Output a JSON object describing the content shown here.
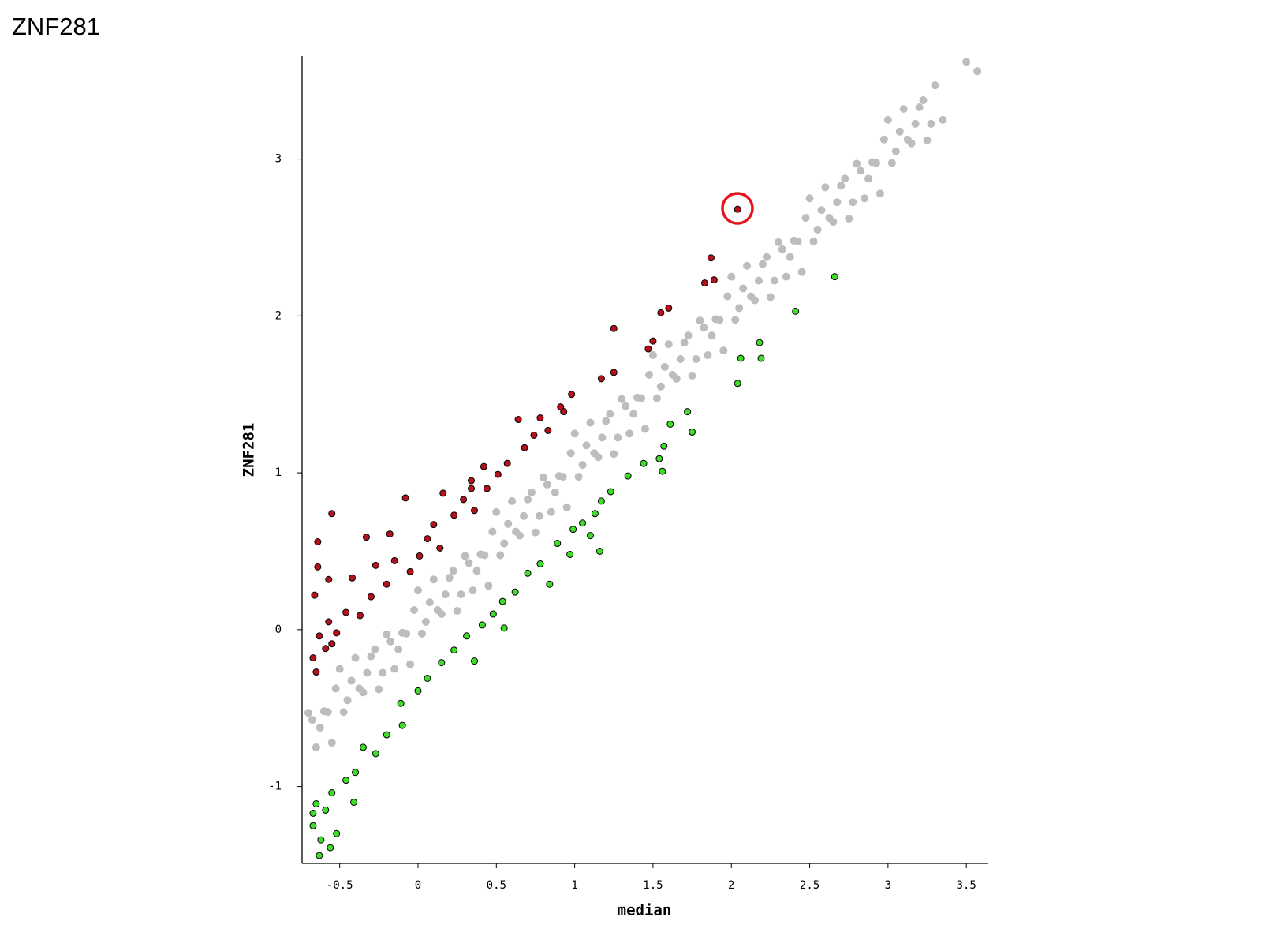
{
  "chart_data": {
    "type": "scatter",
    "title": "ZNF281",
    "x_label": "median",
    "y_label": "ZNF281",
    "xlim": [
      -0.74,
      3.635
    ],
    "ylim": [
      -1.49,
      3.657
    ],
    "xticks": [
      -0.5,
      0,
      0.5,
      1,
      1.5,
      2,
      2.5,
      3,
      3.5
    ],
    "yticks": [
      -1,
      0,
      1,
      2,
      3
    ],
    "grid": false,
    "series": [
      {
        "color": "#bdbdbd",
        "x": [
          -0.7,
          -0.65,
          -0.6,
          -0.55,
          -0.5,
          -0.45,
          -0.4,
          -0.35,
          -0.3,
          -0.25,
          -0.2,
          -0.15,
          -0.1,
          -0.05,
          0.0,
          0.05,
          0.1,
          0.15,
          0.2,
          0.25,
          0.3,
          0.35,
          0.4,
          0.45,
          0.5,
          0.55,
          0.6,
          0.65,
          0.7,
          0.75,
          0.8,
          0.85,
          0.9,
          0.95,
          1.0,
          1.05,
          1.1,
          1.15,
          1.2,
          1.25,
          1.3,
          1.35,
          1.4,
          1.45,
          1.5,
          1.55,
          1.6,
          1.65,
          1.7,
          1.75,
          1.8,
          1.85,
          1.9,
          1.95,
          2.0,
          2.05,
          2.1,
          2.15,
          2.2,
          2.25,
          2.3,
          2.35,
          2.4,
          2.45,
          2.5,
          2.55,
          2.6,
          2.65,
          2.7,
          2.75,
          2.8,
          2.85,
          2.9,
          2.95,
          3.0,
          3.05,
          3.1,
          3.15,
          3.2,
          3.25,
          3.3,
          3.35,
          3.5,
          3.57,
          -0.675,
          -0.625,
          -0.575,
          -0.525,
          -0.475,
          -0.425,
          -0.375,
          -0.325,
          -0.275,
          -0.225,
          -0.175,
          -0.125,
          -0.075,
          -0.025,
          0.025,
          0.075,
          0.125,
          0.175,
          0.225,
          0.275,
          0.325,
          0.375,
          0.425,
          0.475,
          0.525,
          0.575,
          0.625,
          0.675,
          0.725,
          0.775,
          0.825,
          0.875,
          0.925,
          0.975,
          1.025,
          1.075,
          1.125,
          1.175,
          1.225,
          1.275,
          1.325,
          1.375,
          1.425,
          1.475,
          1.525,
          1.575,
          1.625,
          1.675,
          1.725,
          1.775,
          1.825,
          1.875,
          1.925,
          1.975,
          2.025,
          2.075,
          2.125,
          2.175,
          2.225,
          2.275,
          2.325,
          2.375,
          2.425,
          2.475,
          2.525,
          2.575,
          2.625,
          2.675,
          2.725,
          2.775,
          2.825,
          2.875,
          2.925,
          2.975,
          3.025,
          3.075,
          3.125,
          3.175,
          3.225,
          3.275
        ],
        "values": [
          -0.53,
          -0.75,
          -0.52,
          -0.72,
          -0.25,
          -0.45,
          -0.18,
          -0.4,
          -0.17,
          -0.38,
          -0.03,
          -0.25,
          -0.02,
          -0.22,
          0.25,
          0.05,
          0.32,
          0.1,
          0.33,
          0.12,
          0.47,
          0.25,
          0.48,
          0.28,
          0.75,
          0.55,
          0.82,
          0.6,
          0.83,
          0.62,
          0.97,
          0.75,
          0.98,
          0.78,
          1.25,
          1.05,
          1.32,
          1.1,
          1.33,
          1.12,
          1.47,
          1.25,
          1.48,
          1.28,
          1.75,
          1.55,
          1.82,
          1.6,
          1.83,
          1.62,
          1.97,
          1.75,
          1.98,
          1.78,
          2.25,
          2.05,
          2.32,
          2.1,
          2.33,
          2.12,
          2.47,
          2.25,
          2.48,
          2.28,
          2.75,
          2.55,
          2.82,
          2.6,
          2.83,
          2.62,
          2.97,
          2.75,
          2.98,
          2.78,
          3.25,
          3.05,
          3.32,
          3.1,
          3.33,
          3.12,
          3.47,
          3.25,
          3.62,
          3.56,
          -0.575,
          -0.625,
          -0.525,
          -0.375,
          -0.525,
          -0.325,
          -0.375,
          -0.275,
          -0.125,
          -0.275,
          -0.075,
          -0.125,
          -0.025,
          0.125,
          -0.025,
          0.175,
          0.125,
          0.225,
          0.375,
          0.225,
          0.425,
          0.375,
          0.475,
          0.625,
          0.475,
          0.675,
          0.625,
          0.725,
          0.875,
          0.725,
          0.925,
          0.875,
          0.975,
          1.125,
          0.975,
          1.175,
          1.125,
          1.225,
          1.375,
          1.225,
          1.425,
          1.375,
          1.475,
          1.625,
          1.475,
          1.675,
          1.625,
          1.725,
          1.875,
          1.725,
          1.925,
          1.875,
          1.975,
          2.125,
          1.975,
          2.175,
          2.125,
          2.225,
          2.375,
          2.225,
          2.425,
          2.375,
          2.475,
          2.625,
          2.475,
          2.675,
          2.625,
          2.725,
          2.875,
          2.725,
          2.925,
          2.875,
          2.975,
          3.125,
          2.975,
          3.175,
          3.125,
          3.225,
          3.375,
          3.225
        ]
      },
      {
        "color": "#b3121c",
        "edgecolor": "#000000",
        "x": [
          2.04,
          1.87,
          1.89,
          1.83,
          1.6,
          1.55,
          1.25,
          1.5,
          1.47,
          1.25,
          1.17,
          0.98,
          0.91,
          0.78,
          0.64,
          0.74,
          0.68,
          0.57,
          0.42,
          0.51,
          0.34,
          0.44,
          0.16,
          -0.08,
          0.29,
          0.36,
          -0.55,
          0.23,
          0.1,
          -0.18,
          -0.33,
          0.06,
          -0.64,
          0.14,
          0.01,
          -0.15,
          -0.27,
          -0.64,
          -0.05,
          -0.42,
          -0.57,
          -0.2,
          -0.66,
          -0.3,
          -0.46,
          -0.37,
          -0.57,
          -0.52,
          -0.63,
          -0.59,
          -0.67,
          -0.65,
          -0.55,
          0.34,
          0.83,
          0.93
        ],
        "values": [
          2.68,
          2.37,
          2.23,
          2.21,
          2.05,
          2.02,
          1.92,
          1.84,
          1.79,
          1.64,
          1.6,
          1.5,
          1.42,
          1.35,
          1.34,
          1.24,
          1.16,
          1.06,
          1.04,
          0.99,
          0.95,
          0.9,
          0.87,
          0.84,
          0.83,
          0.76,
          0.74,
          0.73,
          0.67,
          0.61,
          0.59,
          0.58,
          0.56,
          0.52,
          0.47,
          0.44,
          0.41,
          0.4,
          0.37,
          0.33,
          0.32,
          0.29,
          0.22,
          0.21,
          0.11,
          0.09,
          0.05,
          -0.02,
          -0.04,
          -0.12,
          -0.18,
          -0.27,
          -0.09,
          0.9,
          1.27,
          1.39
        ]
      },
      {
        "color": "#3fdc2a",
        "edgecolor": "#000000",
        "x": [
          2.66,
          2.41,
          2.18,
          2.19,
          2.06,
          2.04,
          1.72,
          1.61,
          1.75,
          1.57,
          1.54,
          1.44,
          1.56,
          1.34,
          1.23,
          1.17,
          1.13,
          1.05,
          1.1,
          0.99,
          1.16,
          0.89,
          0.97,
          0.78,
          0.84,
          0.7,
          0.62,
          0.54,
          0.48,
          0.41,
          0.55,
          0.31,
          0.23,
          0.15,
          0.36,
          0.06,
          0.0,
          -0.11,
          -0.1,
          -0.2,
          -0.27,
          -0.35,
          -0.4,
          -0.46,
          -0.41,
          -0.55,
          -0.59,
          -0.65,
          -0.67,
          -0.62,
          -0.56,
          -0.63,
          -0.52,
          -0.67
        ],
        "values": [
          2.25,
          2.03,
          1.83,
          1.73,
          1.73,
          1.57,
          1.39,
          1.31,
          1.26,
          1.17,
          1.09,
          1.06,
          1.01,
          0.98,
          0.88,
          0.82,
          0.74,
          0.68,
          0.6,
          0.64,
          0.5,
          0.55,
          0.48,
          0.42,
          0.29,
          0.36,
          0.24,
          0.18,
          0.1,
          0.03,
          0.01,
          -0.04,
          -0.13,
          -0.21,
          -0.2,
          -0.31,
          -0.39,
          -0.47,
          -0.61,
          -0.67,
          -0.79,
          -0.75,
          -0.91,
          -0.96,
          -1.1,
          -1.04,
          -1.15,
          -1.11,
          -1.25,
          -1.34,
          -1.39,
          -1.44,
          -1.3,
          -1.17
        ]
      }
    ]
  }
}
